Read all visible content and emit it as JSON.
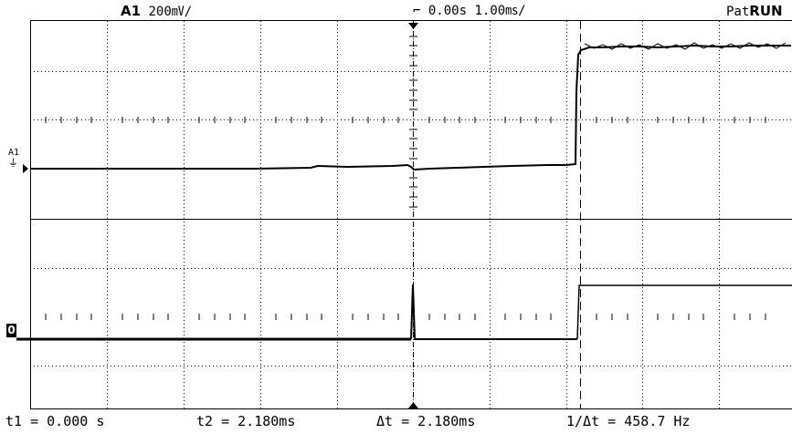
{
  "header": {
    "channel": "A1",
    "volts_div": "200㎷/",
    "time_position": "0.00s",
    "time_div": "1.00㎳/",
    "mode": "Pat",
    "run_state": "RUN"
  },
  "channel_markers": {
    "analog": "A1",
    "digital": "0"
  },
  "cursors": {
    "t1": "t1 = 0.000 s",
    "t2": "t2 = 2.180ms",
    "delta_t": "Δt = 2.180ms",
    "inv_delta_t": "1/Δt = 458.7 Hz"
  }
}
